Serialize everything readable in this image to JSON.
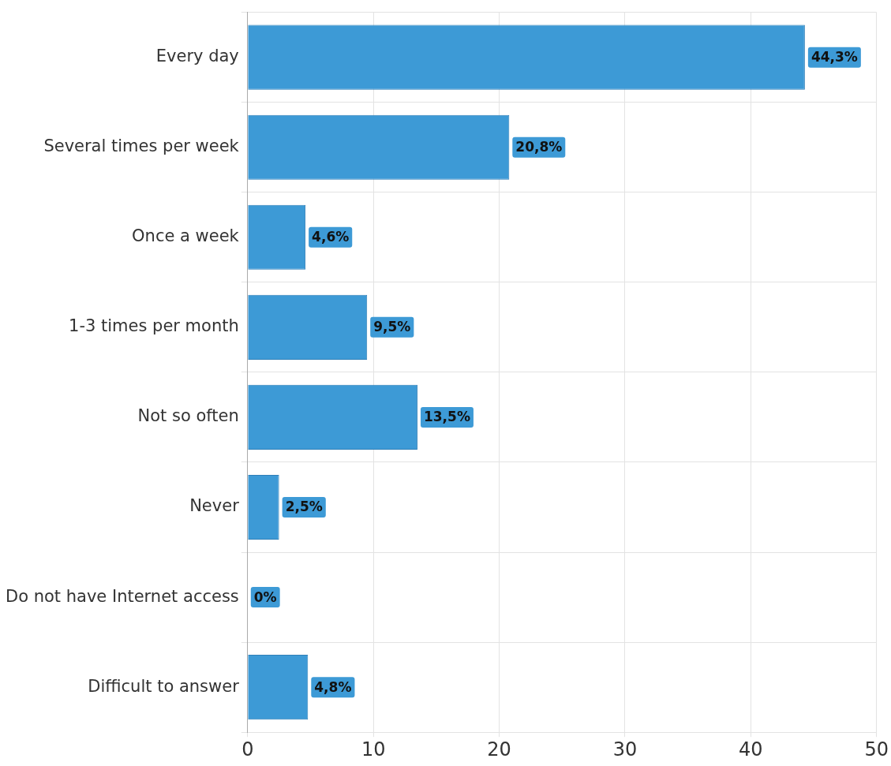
{
  "chart_data": {
    "type": "bar",
    "orientation": "horizontal",
    "categories": [
      "Every day",
      "Several times per week",
      "Once a week",
      "1-3 times per month",
      "Not so often",
      "Never",
      "Do not have Internet access",
      "Difficult to answer"
    ],
    "values": [
      44.3,
      20.8,
      4.6,
      9.5,
      13.5,
      2.5,
      0,
      4.8
    ],
    "value_labels": [
      "44,3%",
      "20,8%",
      "4,6%",
      "9,5%",
      "13,5%",
      "2,5%",
      "0%",
      "4,8%"
    ],
    "color": "#3d9ad6",
    "xlim": [
      0,
      50
    ],
    "xticks": [
      0,
      10,
      20,
      30,
      40,
      50
    ],
    "grid": true,
    "legend": false
  }
}
